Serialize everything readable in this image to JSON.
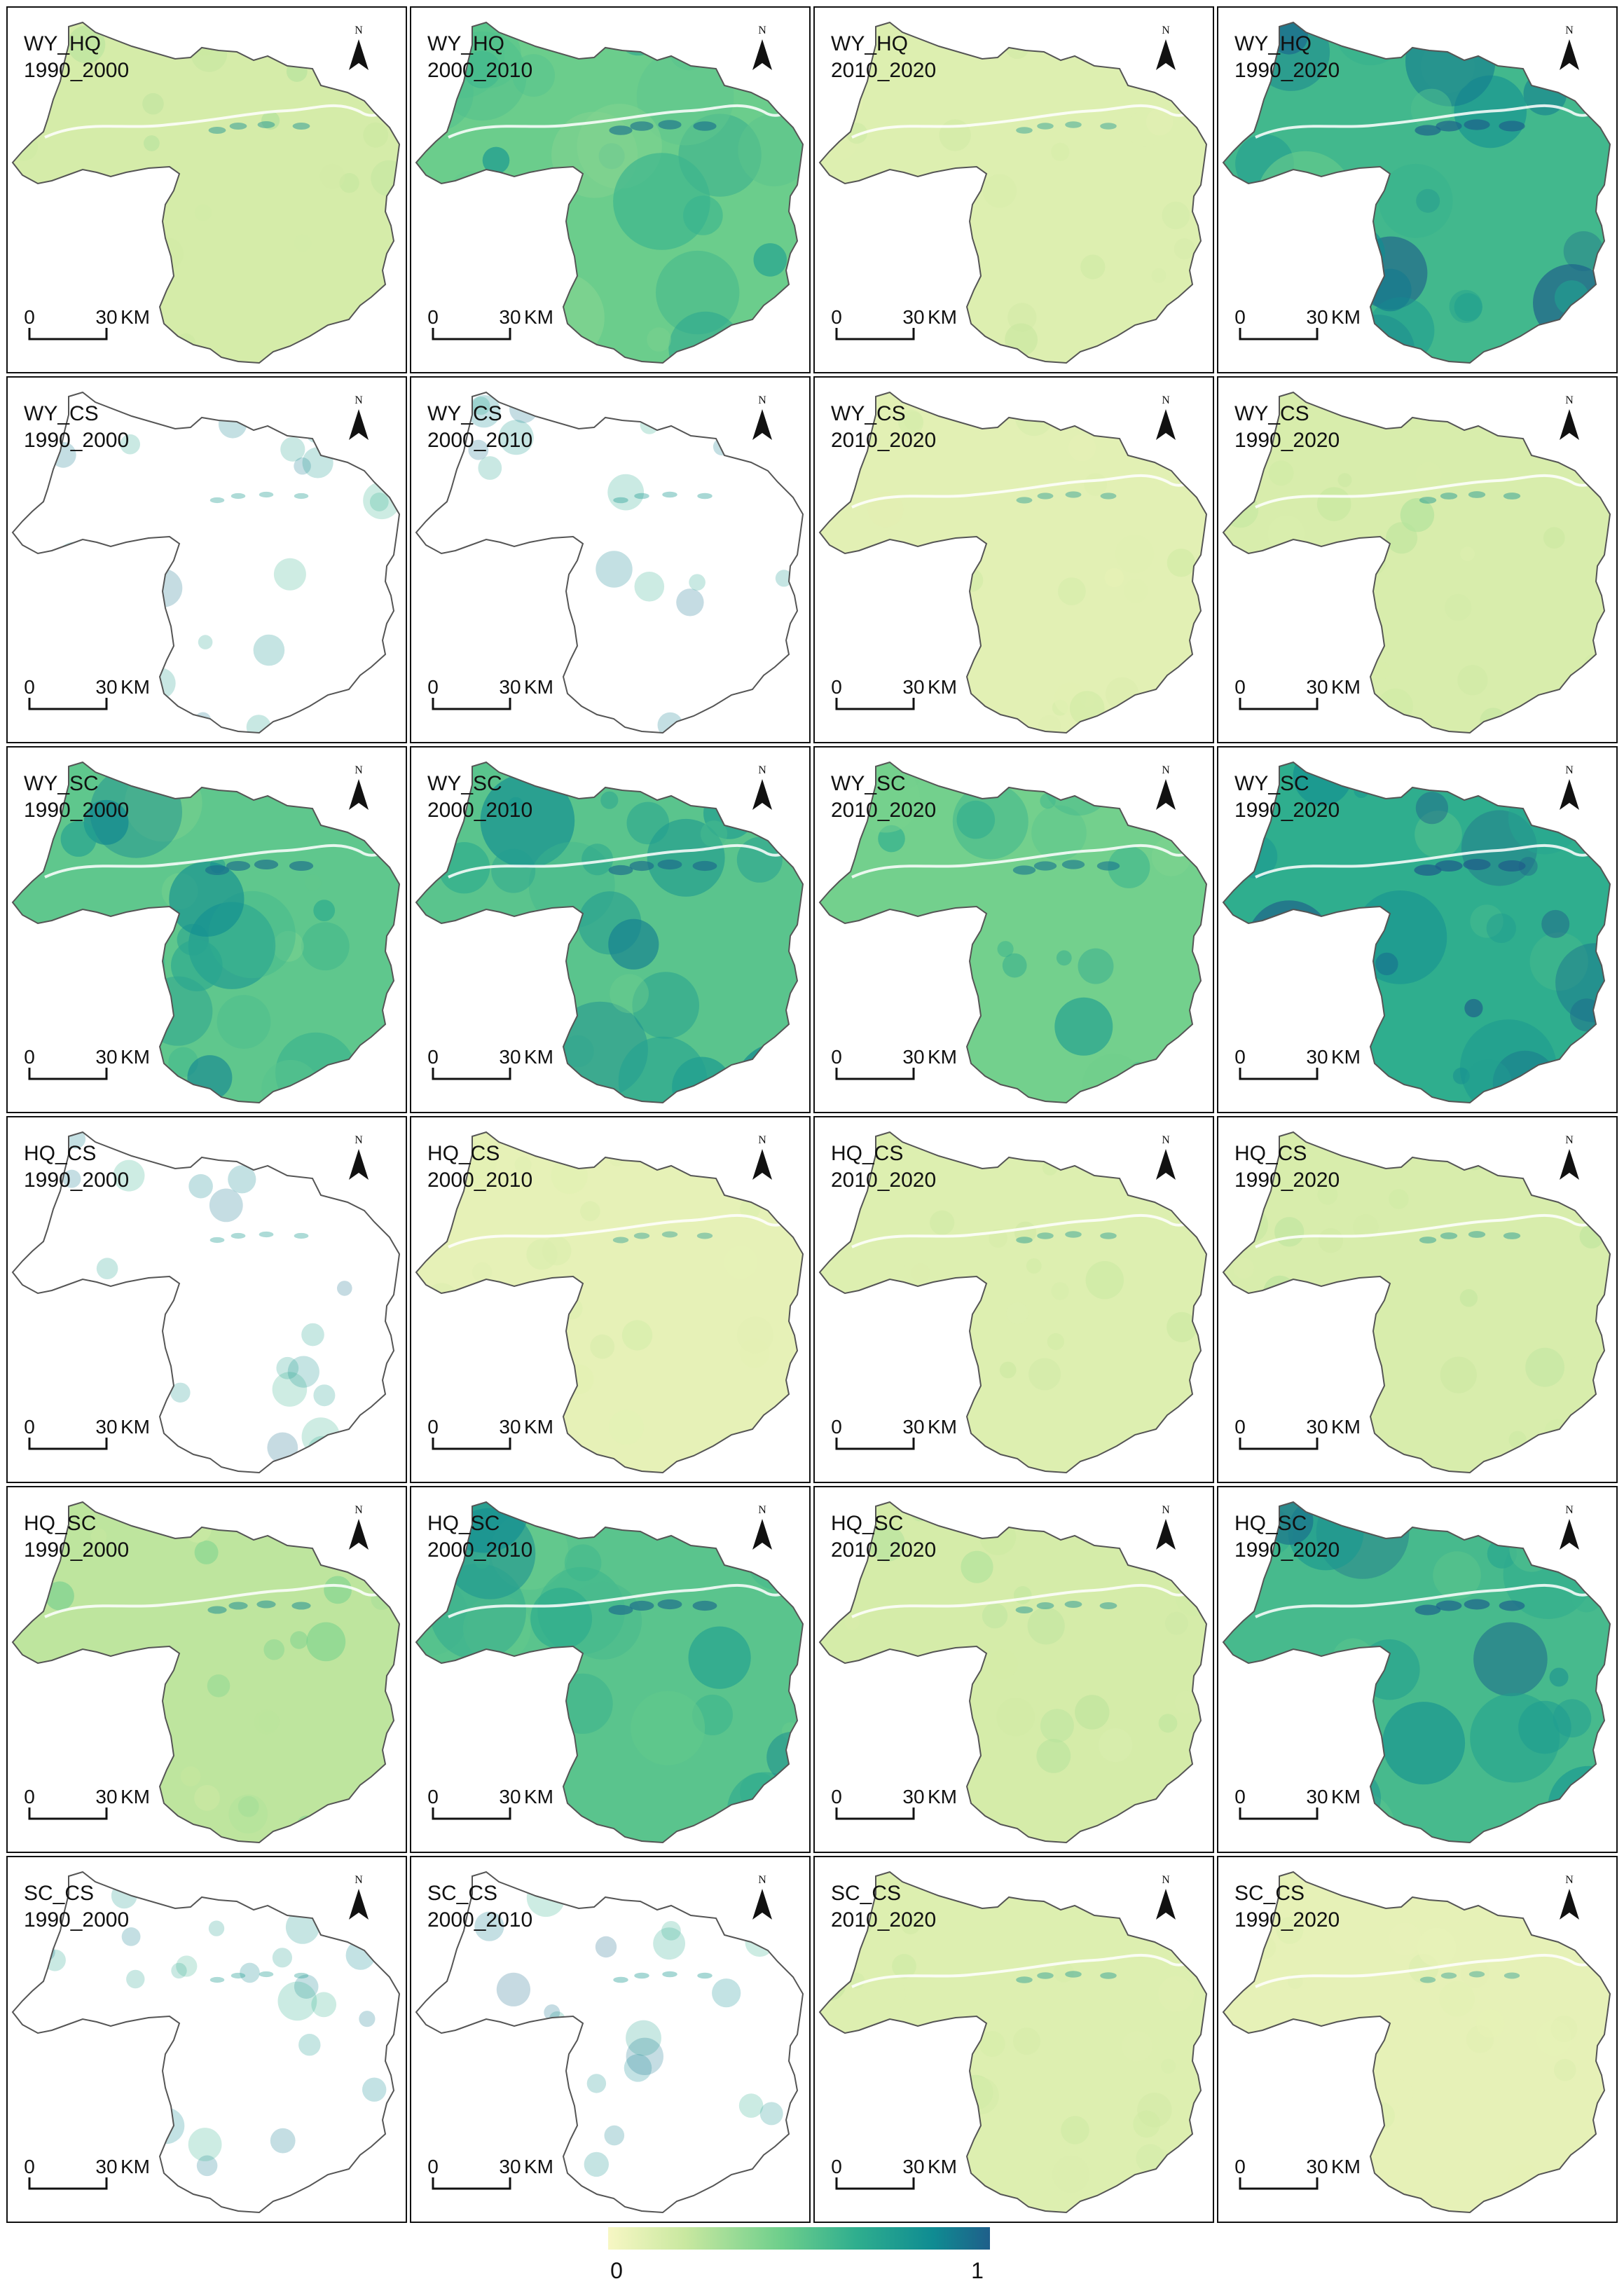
{
  "panels": [
    {
      "pair": "WY_HQ",
      "period": "1990_2000"
    },
    {
      "pair": "WY_HQ",
      "period": "2000_2010"
    },
    {
      "pair": "WY_HQ",
      "period": "2010_2020"
    },
    {
      "pair": "WY_HQ",
      "period": "1990_2020"
    },
    {
      "pair": "WY_CS",
      "period": "1990_2000"
    },
    {
      "pair": "WY_CS",
      "period": "2000_2010"
    },
    {
      "pair": "WY_CS",
      "period": "2010_2020"
    },
    {
      "pair": "WY_CS",
      "period": "1990_2020"
    },
    {
      "pair": "WY_SC",
      "period": "1990_2000"
    },
    {
      "pair": "WY_SC",
      "period": "2000_2010"
    },
    {
      "pair": "WY_SC",
      "period": "2010_2020"
    },
    {
      "pair": "WY_SC",
      "period": "1990_2020"
    },
    {
      "pair": "HQ_CS",
      "period": "1990_2000"
    },
    {
      "pair": "HQ_CS",
      "period": "2000_2010"
    },
    {
      "pair": "HQ_CS",
      "period": "2010_2020"
    },
    {
      "pair": "HQ_CS",
      "period": "1990_2020"
    },
    {
      "pair": "HQ_SC",
      "period": "1990_2000"
    },
    {
      "pair": "HQ_SC",
      "period": "2000_2010"
    },
    {
      "pair": "HQ_SC",
      "period": "2010_2020"
    },
    {
      "pair": "HQ_SC",
      "period": "1990_2020"
    },
    {
      "pair": "SC_CS",
      "period": "1990_2000"
    },
    {
      "pair": "SC_CS",
      "period": "2000_2010"
    },
    {
      "pair": "SC_CS",
      "period": "2010_2020"
    },
    {
      "pair": "SC_CS",
      "period": "1990_2020"
    }
  ],
  "scale_bar": {
    "zero": "0",
    "distance": "30",
    "unit": "KM"
  },
  "north_arrow": {
    "label": "N",
    "icon": "north-arrow-icon"
  },
  "legend": {
    "min_label": "0",
    "max_label": "1",
    "min_value": 0,
    "max_value": 1,
    "colors": [
      "#f7f7c4",
      "#c9e8a0",
      "#6fcf8c",
      "#2fae8e",
      "#0f8c92",
      "#1f5f8a"
    ]
  },
  "panel_intensity": [
    0.2,
    0.55,
    0.15,
    0.72,
    0.02,
    0.06,
    0.12,
    0.18,
    0.6,
    0.62,
    0.52,
    0.8,
    0.03,
    0.1,
    0.15,
    0.18,
    0.3,
    0.62,
    0.2,
    0.7,
    0.02,
    0.06,
    0.15,
    0.1
  ]
}
